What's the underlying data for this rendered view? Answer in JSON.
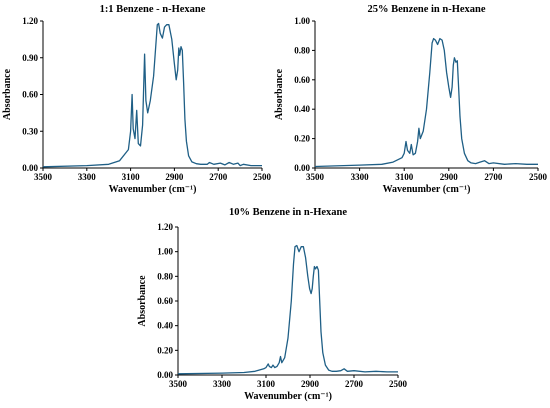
{
  "colors": {
    "trace": "#1f5f86",
    "axis": "#000000"
  },
  "chart_data": [
    {
      "type": "line",
      "title": "1:1 Benzene - n-Hexane",
      "xlabel": "Wavenumber (cm⁻¹)",
      "ylabel": "Absorbance",
      "xlim": [
        3500,
        2500
      ],
      "ylim": [
        0,
        1.2
      ],
      "xticks": [
        3500,
        3300,
        3100,
        2900,
        2700,
        2500
      ],
      "yticks": [
        0.0,
        0.3,
        0.6,
        0.9,
        1.2
      ],
      "ytick_labels": [
        "0.00",
        "0.30",
        "0.60",
        "0.90",
        "1.20"
      ],
      "grid": false,
      "series": [
        {
          "x": [
            3500,
            3300,
            3200,
            3150,
            3110,
            3100,
            3093,
            3088,
            3080,
            3072,
            3065,
            3055,
            3045,
            3036,
            3030,
            3022,
            3010,
            2995,
            2985,
            2978,
            2972,
            2965,
            2955,
            2945,
            2935,
            2925,
            2912,
            2900,
            2892,
            2885,
            2880,
            2876,
            2870,
            2864,
            2858,
            2852,
            2845,
            2835,
            2820,
            2800,
            2780,
            2750,
            2740,
            2720,
            2690,
            2670,
            2650,
            2630,
            2610,
            2600,
            2585,
            2550,
            2500
          ],
          "y": [
            0.01,
            0.02,
            0.03,
            0.06,
            0.15,
            0.3,
            0.6,
            0.32,
            0.24,
            0.47,
            0.2,
            0.18,
            0.35,
            0.93,
            0.55,
            0.45,
            0.55,
            0.75,
            1.0,
            1.17,
            1.18,
            1.1,
            1.06,
            1.15,
            1.17,
            1.17,
            1.05,
            0.85,
            0.72,
            0.8,
            0.98,
            0.92,
            0.99,
            0.96,
            0.7,
            0.4,
            0.22,
            0.1,
            0.05,
            0.035,
            0.03,
            0.03,
            0.045,
            0.03,
            0.04,
            0.025,
            0.045,
            0.03,
            0.04,
            0.02,
            0.03,
            0.02,
            0.02
          ]
        }
      ]
    },
    {
      "type": "line",
      "title": "25% Benzene in n-Hexane",
      "xlabel": "Wavenumber (cm⁻¹)",
      "ylabel": "Absorbance",
      "xlim": [
        3500,
        2500
      ],
      "ylim": [
        0,
        1.0
      ],
      "xticks": [
        3500,
        3300,
        3100,
        2900,
        2700,
        2500
      ],
      "yticks": [
        0.0,
        0.2,
        0.4,
        0.6,
        0.8,
        1.0
      ],
      "ytick_labels": [
        "0.00",
        "0.20",
        "0.40",
        "0.60",
        "0.80",
        "1.00"
      ],
      "grid": false,
      "series": [
        {
          "x": [
            3500,
            3300,
            3200,
            3150,
            3110,
            3100,
            3092,
            3085,
            3075,
            3068,
            3060,
            3050,
            3040,
            3034,
            3028,
            3015,
            3000,
            2985,
            2975,
            2968,
            2960,
            2950,
            2940,
            2930,
            2920,
            2910,
            2900,
            2892,
            2885,
            2880,
            2875,
            2868,
            2862,
            2856,
            2850,
            2842,
            2830,
            2815,
            2800,
            2780,
            2760,
            2740,
            2720,
            2700,
            2650,
            2600,
            2550,
            2500
          ],
          "y": [
            0.01,
            0.02,
            0.025,
            0.04,
            0.07,
            0.1,
            0.18,
            0.12,
            0.1,
            0.16,
            0.09,
            0.1,
            0.18,
            0.27,
            0.2,
            0.25,
            0.4,
            0.65,
            0.85,
            0.88,
            0.87,
            0.84,
            0.88,
            0.87,
            0.8,
            0.65,
            0.55,
            0.48,
            0.55,
            0.7,
            0.75,
            0.72,
            0.73,
            0.55,
            0.35,
            0.2,
            0.1,
            0.05,
            0.035,
            0.03,
            0.04,
            0.05,
            0.03,
            0.035,
            0.025,
            0.03,
            0.025,
            0.025
          ]
        }
      ]
    },
    {
      "type": "line",
      "title": "10% Benzene in n-Hexane",
      "xlabel": "Wavenumber (cm⁻¹)",
      "ylabel": "Absorbance",
      "xlim": [
        3500,
        2500
      ],
      "ylim": [
        0,
        1.2
      ],
      "xticks": [
        3500,
        3300,
        3100,
        2900,
        2700,
        2500
      ],
      "yticks": [
        0.0,
        0.2,
        0.4,
        0.6,
        0.8,
        1.0,
        1.2
      ],
      "ytick_labels": [
        "0.00",
        "0.20",
        "0.40",
        "0.60",
        "0.80",
        "1.00",
        "1.20"
      ],
      "grid": false,
      "series": [
        {
          "x": [
            3500,
            3300,
            3200,
            3150,
            3110,
            3100,
            3090,
            3085,
            3076,
            3068,
            3060,
            3050,
            3040,
            3034,
            3028,
            3015,
            3000,
            2985,
            2975,
            2968,
            2960,
            2950,
            2940,
            2930,
            2920,
            2910,
            2902,
            2895,
            2890,
            2885,
            2880,
            2875,
            2868,
            2862,
            2856,
            2850,
            2842,
            2830,
            2815,
            2800,
            2780,
            2760,
            2745,
            2730,
            2700,
            2650,
            2600,
            2550,
            2500
          ],
          "y": [
            0.01,
            0.015,
            0.02,
            0.03,
            0.05,
            0.06,
            0.09,
            0.07,
            0.06,
            0.08,
            0.06,
            0.07,
            0.1,
            0.15,
            0.1,
            0.14,
            0.3,
            0.6,
            0.9,
            1.04,
            1.05,
            1.0,
            1.04,
            1.04,
            0.95,
            0.8,
            0.7,
            0.66,
            0.7,
            0.8,
            0.88,
            0.86,
            0.88,
            0.85,
            0.6,
            0.35,
            0.18,
            0.08,
            0.04,
            0.03,
            0.03,
            0.035,
            0.05,
            0.03,
            0.035,
            0.025,
            0.03,
            0.025,
            0.025
          ]
        }
      ]
    }
  ]
}
